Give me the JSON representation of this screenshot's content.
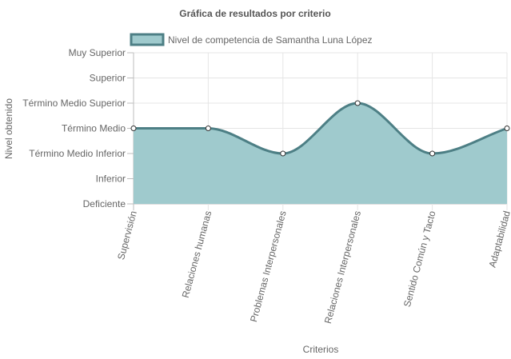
{
  "chart_data": {
    "type": "area",
    "title": "Gráfica de resultados por criterio",
    "xlabel": "Criterios",
    "ylabel": "Nivel obtenido",
    "categories": [
      "Supervisión",
      "Relaciones humanas",
      "Problemas Interpersonales",
      "Relaciones Interpersonales",
      "Sentido Común y Tacto",
      "Adaptabilidad"
    ],
    "y_levels": [
      "Deficiente",
      "Inferior",
      "Término Medio Inferior",
      "Término Medio",
      "Término Medio Superior",
      "Superior",
      "Muy Superior"
    ],
    "ylim": [
      1,
      7
    ],
    "series": [
      {
        "name": "Nivel de competencia de Samantha Luna López",
        "values": [
          4,
          4,
          3,
          5,
          3,
          4
        ],
        "fill_color": "#9fcacd",
        "line_color": "#4d7f85"
      }
    ],
    "grid": true,
    "legend_position": "top"
  }
}
